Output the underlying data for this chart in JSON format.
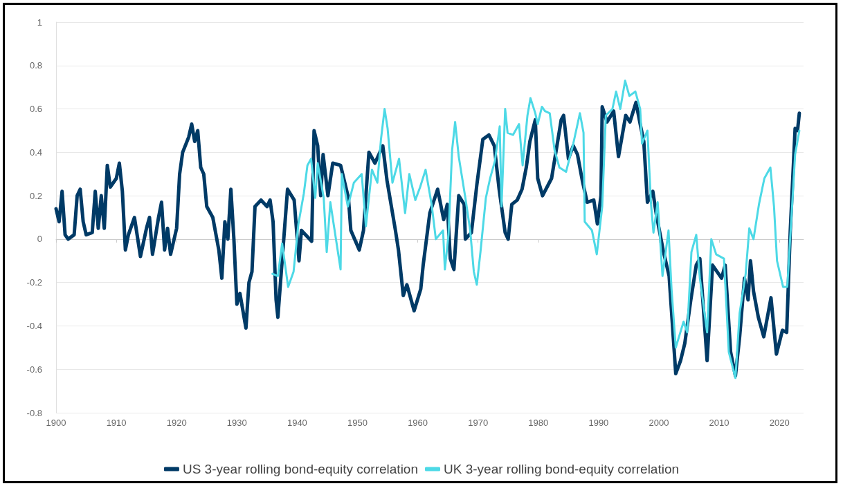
{
  "chart_data": {
    "type": "line",
    "xlim": [
      1900,
      2024
    ],
    "xticks": [
      1900,
      1910,
      1920,
      1930,
      1940,
      1950,
      1960,
      1970,
      1980,
      1990,
      2000,
      2010,
      2020
    ],
    "ylim": [
      -0.8,
      1
    ],
    "yticks": [
      -0.8,
      -0.6,
      -0.4,
      -0.2,
      0,
      0.2,
      0.4,
      0.6,
      0.8,
      1
    ],
    "grid": "y",
    "legend": "bottom",
    "marker": "none",
    "line_style": "solid",
    "series": [
      {
        "name": "US 3-year rolling bond-equity correlation",
        "color": "#003a66",
        "x": [
          1900,
          1900.5,
          1901,
          1901.5,
          1902,
          1903,
          1903.5,
          1904,
          1904.5,
          1905,
          1906,
          1906.5,
          1907,
          1907.5,
          1908,
          1908.5,
          1909,
          1910,
          1910.5,
          1911,
          1911.5,
          1912,
          1913,
          1914,
          1915,
          1915.5,
          1916,
          1917,
          1917.5,
          1918,
          1918.5,
          1919,
          1920,
          1920.5,
          1921,
          1922,
          1922.5,
          1923,
          1923.5,
          1924,
          1924.5,
          1925,
          1926,
          1927,
          1927.5,
          1928,
          1928.5,
          1929,
          1929.5,
          1930,
          1930.5,
          1931,
          1931.5,
          1932,
          1932.5,
          1933,
          1934,
          1935,
          1935.5,
          1936,
          1936.5,
          1936.8,
          1937.5,
          1938.4,
          1939.5,
          1940.3,
          1940.7,
          1942.4,
          1942.8,
          1943.4,
          1943.9,
          1944.3,
          1945.1,
          1945.9,
          1947.2,
          1948.5,
          1948.9,
          1950.3,
          1951,
          1951.9,
          1952.9,
          1954.2,
          1954.9,
          1956.3,
          1956.8,
          1957.6,
          1958.2,
          1959.4,
          1960.5,
          1960.9,
          1962,
          1963.3,
          1964.3,
          1964.9,
          1965.4,
          1966,
          1966.8,
          1967.7,
          1967.9,
          1968.9,
          1969.8,
          1970.8,
          1971.8,
          1972.7,
          1973.5,
          1974.5,
          1975,
          1975.6,
          1976.5,
          1977.3,
          1978,
          1978.6,
          1979.5,
          1979.9,
          1980.7,
          1982.2,
          1983.8,
          1984.2,
          1985,
          1985.8,
          1986.5,
          1987.3,
          1988.1,
          1989.2,
          1989.8,
          1990.4,
          1990.6,
          1991.4,
          1992.5,
          1993.3,
          1994.5,
          1995.2,
          1996.2,
          1996.9,
          1997.5,
          1998.1,
          1999,
          1999.6,
          2000.7,
          2001.7,
          2002.8,
          2003.6,
          2004.3,
          2005.3,
          2006.2,
          2006.8,
          2008,
          2008.9,
          2010.4,
          2011,
          2011.9,
          2012.7,
          2013.4,
          2014.2,
          2014.8,
          2015.2,
          2015.7,
          2016.5,
          2017.4,
          2018.6,
          2019.5,
          2020.5,
          2021.2,
          2021.8,
          2022.6,
          2023,
          2023.3
        ],
        "values": [
          0.14,
          0.08,
          0.22,
          0.02,
          0.0,
          0.02,
          0.2,
          0.23,
          0.08,
          0.02,
          0.03,
          0.22,
          0.05,
          0.2,
          0.05,
          0.34,
          0.24,
          0.28,
          0.35,
          0.22,
          -0.05,
          0.02,
          0.1,
          -0.08,
          0.05,
          0.1,
          -0.07,
          0.1,
          0.17,
          -0.05,
          0.05,
          -0.07,
          0.05,
          0.3,
          0.4,
          0.47,
          0.53,
          0.45,
          0.5,
          0.33,
          0.3,
          0.15,
          0.1,
          -0.05,
          -0.18,
          0.08,
          0.0,
          0.23,
          0.0,
          -0.3,
          -0.25,
          -0.33,
          -0.41,
          -0.2,
          -0.15,
          0.15,
          0.18,
          0.15,
          0.18,
          0.08,
          -0.28,
          -0.36,
          -0.1,
          0.23,
          0.18,
          -0.1,
          0.04,
          -0.01,
          0.5,
          0.43,
          0.2,
          0.39,
          0.2,
          0.35,
          0.34,
          0.19,
          0.04,
          -0.05,
          0.04,
          0.4,
          0.35,
          0.43,
          0.27,
          0.04,
          -0.05,
          -0.26,
          -0.21,
          -0.33,
          -0.23,
          -0.12,
          0.12,
          0.23,
          0.09,
          0.16,
          -0.09,
          -0.14,
          0.2,
          0.16,
          0.0,
          0.03,
          0.25,
          0.46,
          0.48,
          0.43,
          0.23,
          0.03,
          0.0,
          0.16,
          0.18,
          0.23,
          0.33,
          0.45,
          0.55,
          0.28,
          0.2,
          0.28,
          0.55,
          0.57,
          0.37,
          0.43,
          0.39,
          0.27,
          0.17,
          0.18,
          0.07,
          0.2,
          0.61,
          0.54,
          0.59,
          0.38,
          0.57,
          0.54,
          0.63,
          0.53,
          0.45,
          0.17,
          0.22,
          0.11,
          -0.05,
          -0.17,
          -0.62,
          -0.56,
          -0.48,
          -0.28,
          -0.12,
          -0.09,
          -0.56,
          -0.12,
          -0.18,
          -0.12,
          -0.52,
          -0.63,
          -0.45,
          -0.18,
          -0.28,
          -0.1,
          -0.24,
          -0.36,
          -0.45,
          -0.27,
          -0.53,
          -0.42,
          -0.43,
          0.04,
          0.51,
          0.5,
          0.58
        ]
      },
      {
        "name": "UK 3-year rolling bond-equity correlation",
        "color": "#4dd9e6",
        "x": [
          1935.9,
          1936.8,
          1937.5,
          1938.5,
          1939.4,
          1940.2,
          1941.1,
          1941.7,
          1942.3,
          1943,
          1943.4,
          1944.4,
          1944.9,
          1945.5,
          1946.1,
          1947.2,
          1947.4,
          1948.4,
          1949.4,
          1950.7,
          1951.4,
          1952.4,
          1953.3,
          1953.9,
          1954.5,
          1955,
          1955.8,
          1956.9,
          1957.9,
          1958.6,
          1959.6,
          1960.4,
          1961.3,
          1962.3,
          1963,
          1964.2,
          1964.5,
          1965.1,
          1965.7,
          1966.2,
          1966.8,
          1967.9,
          1968.7,
          1969.3,
          1969.8,
          1970.4,
          1971.3,
          1972,
          1972.8,
          1973.6,
          1973.9,
          1974.5,
          1974.9,
          1975.8,
          1976.8,
          1977.4,
          1978.2,
          1978.7,
          1979.5,
          1979.9,
          1980.6,
          1981.1,
          1981.9,
          1982.7,
          1983.5,
          1984.6,
          1985.8,
          1986.9,
          1987.5,
          1987.7,
          1988.9,
          1989.7,
          1990.6,
          1991.2,
          1992.3,
          1992.9,
          1993.6,
          1994.4,
          1995.1,
          1996.1,
          1996.9,
          1997.2,
          1998.1,
          1998.7,
          1999.1,
          1999.8,
          2000.6,
          2001.6,
          2002.1,
          2002.8,
          2004.1,
          2004.7,
          2005.4,
          2006.2,
          2006.8,
          2008,
          2008.7,
          2009.5,
          2010.8,
          2011.6,
          2012.7,
          2013.4,
          2014.4,
          2015,
          2015.7,
          2016.6,
          2017.5,
          2018.5,
          2019.1,
          2019.6,
          2020.6,
          2021.3,
          2022.1,
          2022.6,
          2023.3
        ],
        "values": [
          -0.16,
          -0.17,
          -0.02,
          -0.22,
          -0.15,
          0.07,
          0.21,
          0.34,
          0.37,
          0.19,
          0.35,
          0.19,
          -0.06,
          0.17,
          0.06,
          -0.14,
          0.3,
          0.15,
          0.26,
          0.3,
          0.06,
          0.32,
          0.26,
          0.46,
          0.6,
          0.51,
          0.26,
          0.37,
          0.12,
          0.3,
          0.18,
          0.24,
          0.32,
          0.16,
          0.0,
          0.04,
          -0.14,
          0.02,
          0.41,
          0.54,
          0.38,
          0.19,
          0.04,
          -0.15,
          -0.21,
          -0.06,
          0.19,
          0.28,
          0.36,
          0.52,
          0.15,
          0.6,
          0.49,
          0.48,
          0.53,
          0.34,
          0.57,
          0.65,
          0.58,
          0.53,
          0.61,
          0.59,
          0.58,
          0.41,
          0.33,
          0.31,
          0.44,
          0.58,
          0.49,
          0.08,
          0.04,
          -0.07,
          0.15,
          0.57,
          0.6,
          0.68,
          0.6,
          0.73,
          0.66,
          0.68,
          0.6,
          0.44,
          0.5,
          0.16,
          0.03,
          0.17,
          -0.17,
          0.04,
          -0.23,
          -0.5,
          -0.38,
          -0.43,
          -0.06,
          0.02,
          -0.18,
          -0.43,
          0.0,
          -0.07,
          -0.09,
          -0.52,
          -0.64,
          -0.34,
          -0.16,
          0.05,
          0.0,
          0.16,
          0.28,
          0.33,
          0.15,
          -0.1,
          -0.22,
          -0.22,
          0.15,
          0.39,
          0.5
        ]
      }
    ]
  }
}
